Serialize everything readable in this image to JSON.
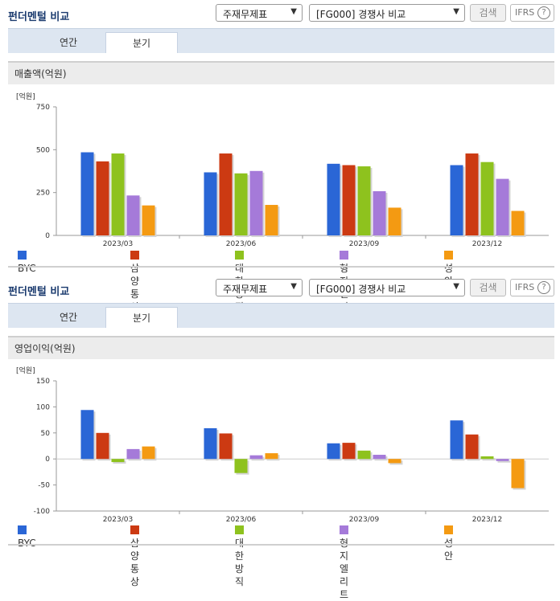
{
  "panels": [
    {
      "title": "펀더멘털 비교",
      "filter1": "주재무제표",
      "filter2": "[FG000] 경쟁사 비교",
      "search_label": "검색",
      "ifrs_label": "IFRS",
      "help_glyph": "?",
      "tabs": [
        "연간",
        "분기"
      ],
      "active_tab": "분기",
      "section_title": "매출액(억원)",
      "unit": "[억원]"
    },
    {
      "title": "펀더멘털 비교",
      "filter1": "주재무제표",
      "filter2": "[FG000] 경쟁사 비교",
      "search_label": "검색",
      "ifrs_label": "IFRS",
      "help_glyph": "?",
      "tabs": [
        "연간",
        "분기"
      ],
      "active_tab": "분기",
      "section_title": "영업이익(억원)",
      "unit": "[억원]"
    }
  ],
  "legend": [
    {
      "name": "BYC",
      "color": "#2a66d6"
    },
    {
      "name": "삼양통상",
      "color": "#cc3a12"
    },
    {
      "name": "대한방직",
      "color": "#8ec21e"
    },
    {
      "name": "형지엘리트",
      "color": "#a57ad9"
    },
    {
      "name": "성안",
      "color": "#f49a12"
    }
  ],
  "chart_data": [
    {
      "type": "bar",
      "title": "매출액(억원)",
      "ylabel": "[억원]",
      "categories": [
        "2023/03",
        "2023/06",
        "2023/09",
        "2023/12"
      ],
      "ylim": [
        0,
        750
      ],
      "yticks": [
        0,
        250,
        500,
        750
      ],
      "grid": false,
      "legend_position": "bottom",
      "series": [
        {
          "name": "BYC",
          "values": [
            485,
            368,
            418,
            410
          ]
        },
        {
          "name": "삼양통상",
          "values": [
            432,
            478,
            410,
            478
          ]
        },
        {
          "name": "대한방직",
          "values": [
            478,
            362,
            403,
            428
          ]
        },
        {
          "name": "형지엘리트",
          "values": [
            233,
            376,
            258,
            330
          ]
        },
        {
          "name": "성안",
          "values": [
            175,
            178,
            162,
            143
          ]
        }
      ]
    },
    {
      "type": "bar",
      "title": "영업이익(억원)",
      "ylabel": "[억원]",
      "categories": [
        "2023/03",
        "2023/06",
        "2023/09",
        "2023/12"
      ],
      "ylim": [
        -100,
        150
      ],
      "yticks": [
        -100,
        -50,
        0,
        50,
        100,
        150
      ],
      "grid": false,
      "legend_position": "bottom",
      "series": [
        {
          "name": "BYC",
          "values": [
            94,
            59,
            30,
            74
          ]
        },
        {
          "name": "삼양통상",
          "values": [
            50,
            49,
            31,
            47
          ]
        },
        {
          "name": "대한방직",
          "values": [
            -6,
            -27,
            16,
            5
          ]
        },
        {
          "name": "형지엘리트",
          "values": [
            19,
            7,
            8,
            -4
          ]
        },
        {
          "name": "성안",
          "values": [
            24,
            11,
            -8,
            -56
          ]
        }
      ]
    }
  ]
}
